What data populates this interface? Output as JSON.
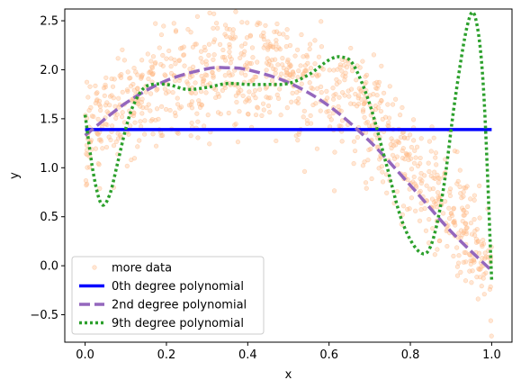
{
  "chart_data": {
    "type": "scatter",
    "title": "",
    "xlabel": "x",
    "ylabel": "y",
    "xlim": [
      -0.05,
      1.05
    ],
    "ylim": [
      -0.78,
      2.62
    ],
    "xticks": [
      0.0,
      0.2,
      0.4,
      0.6,
      0.8,
      1.0
    ],
    "xtick_labels": [
      "0.0",
      "0.2",
      "0.4",
      "0.6",
      "0.8",
      "1.0"
    ],
    "yticks": [
      -0.5,
      0.0,
      0.5,
      1.0,
      1.5,
      2.0,
      2.5
    ],
    "ytick_labels": [
      "−0.5",
      "0.0",
      "0.5",
      "1.0",
      "1.5",
      "2.0",
      "2.5"
    ],
    "grid": false,
    "legend_position": "lower-left",
    "scatter": {
      "name": "more data",
      "color": "#ffbb88",
      "count": 1000,
      "approx_trend": "y ≈ 1.33 + 3.83x − 5.2x² (noise σ≈0.3)"
    },
    "series": [
      {
        "name": "0th degree polynomial",
        "color": "#0000ff",
        "style": "solid",
        "x": [
          0.0,
          1.0
        ],
        "y": [
          1.39,
          1.39
        ]
      },
      {
        "name": "2nd degree polynomial",
        "color": "#9467bd",
        "style": "dashed",
        "x": [
          0.0,
          0.1,
          0.2,
          0.3,
          0.35,
          0.4,
          0.5,
          0.6,
          0.7,
          0.8,
          0.9,
          1.0
        ],
        "y": [
          1.33,
          1.66,
          1.89,
          2.01,
          2.02,
          2.0,
          1.87,
          1.63,
          1.27,
          0.82,
          0.35,
          -0.05
        ]
      },
      {
        "name": "9th degree polynomial",
        "color": "#2ca02c",
        "style": "dotted",
        "x": [
          0.0,
          0.02,
          0.04,
          0.06,
          0.08,
          0.1,
          0.12,
          0.15,
          0.2,
          0.25,
          0.3,
          0.35,
          0.4,
          0.45,
          0.5,
          0.55,
          0.6,
          0.63,
          0.66,
          0.7,
          0.74,
          0.78,
          0.82,
          0.85,
          0.88,
          0.91,
          0.94,
          0.96,
          0.98,
          1.0
        ],
        "y": [
          1.54,
          0.95,
          0.63,
          0.72,
          1.05,
          1.4,
          1.65,
          1.83,
          1.85,
          1.8,
          1.82,
          1.86,
          1.85,
          1.85,
          1.86,
          1.95,
          2.1,
          2.13,
          2.05,
          1.65,
          1.05,
          0.45,
          0.15,
          0.2,
          0.75,
          1.7,
          2.45,
          2.53,
          1.8,
          -0.15
        ]
      }
    ]
  }
}
